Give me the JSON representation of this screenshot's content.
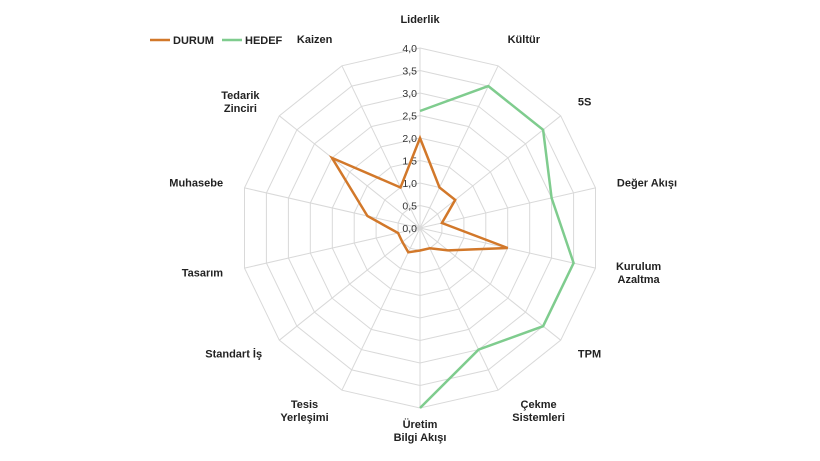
{
  "chart_data": {
    "type": "radar",
    "title": "",
    "categories": [
      "Liderlik",
      "Kültür",
      "5S",
      "Değer Akışı",
      "Kurulum Azaltma",
      "TPM",
      "Çekme Sistemleri",
      "Üretim Bilgi Akışı",
      "Tesis Yerleşimi",
      "Standart İş",
      "Tasarım",
      "Muhasebe",
      "Tedarik Zinciri",
      "Kaizen"
    ],
    "category_lines": [
      [
        "Liderlik"
      ],
      [
        "Kültür"
      ],
      [
        "5S"
      ],
      [
        "Değer Akışı"
      ],
      [
        "Kurulum",
        "Azaltma"
      ],
      [
        "TPM"
      ],
      [
        "Çekme",
        "Sistemleri"
      ],
      [
        "Üretim",
        "Bilgi Akışı"
      ],
      [
        "Tesis",
        "Yerleşimi"
      ],
      [
        "Standart İş"
      ],
      [
        "Tasarım"
      ],
      [
        "Muhasebe"
      ],
      [
        "Tedarik",
        "Zinciri"
      ],
      [
        "Kaizen"
      ]
    ],
    "rlim": [
      0,
      4
    ],
    "ticks": [
      "0,0",
      "0,5",
      "1,0",
      "1,5",
      "2,0",
      "2,5",
      "3,0",
      "3,5",
      "4,0"
    ],
    "tick_values": [
      0,
      0.5,
      1,
      1.5,
      2,
      2.5,
      3,
      3.5,
      4
    ],
    "legend_position": "top-left",
    "series": [
      {
        "name": "DURUM",
        "color": "#D2782A",
        "values": [
          2.0,
          1.0,
          1.0,
          0.5,
          2.0,
          0.8,
          0.5,
          0.5,
          0.6,
          0.5,
          0.5,
          1.2,
          2.5,
          1.0
        ]
      },
      {
        "name": "HEDEF",
        "color": "#7FCC8E",
        "values": [
          2.6,
          3.5,
          3.5,
          3.0,
          3.5,
          3.5,
          3.0,
          4.0,
          null,
          null,
          null,
          null,
          null,
          null
        ]
      }
    ]
  }
}
